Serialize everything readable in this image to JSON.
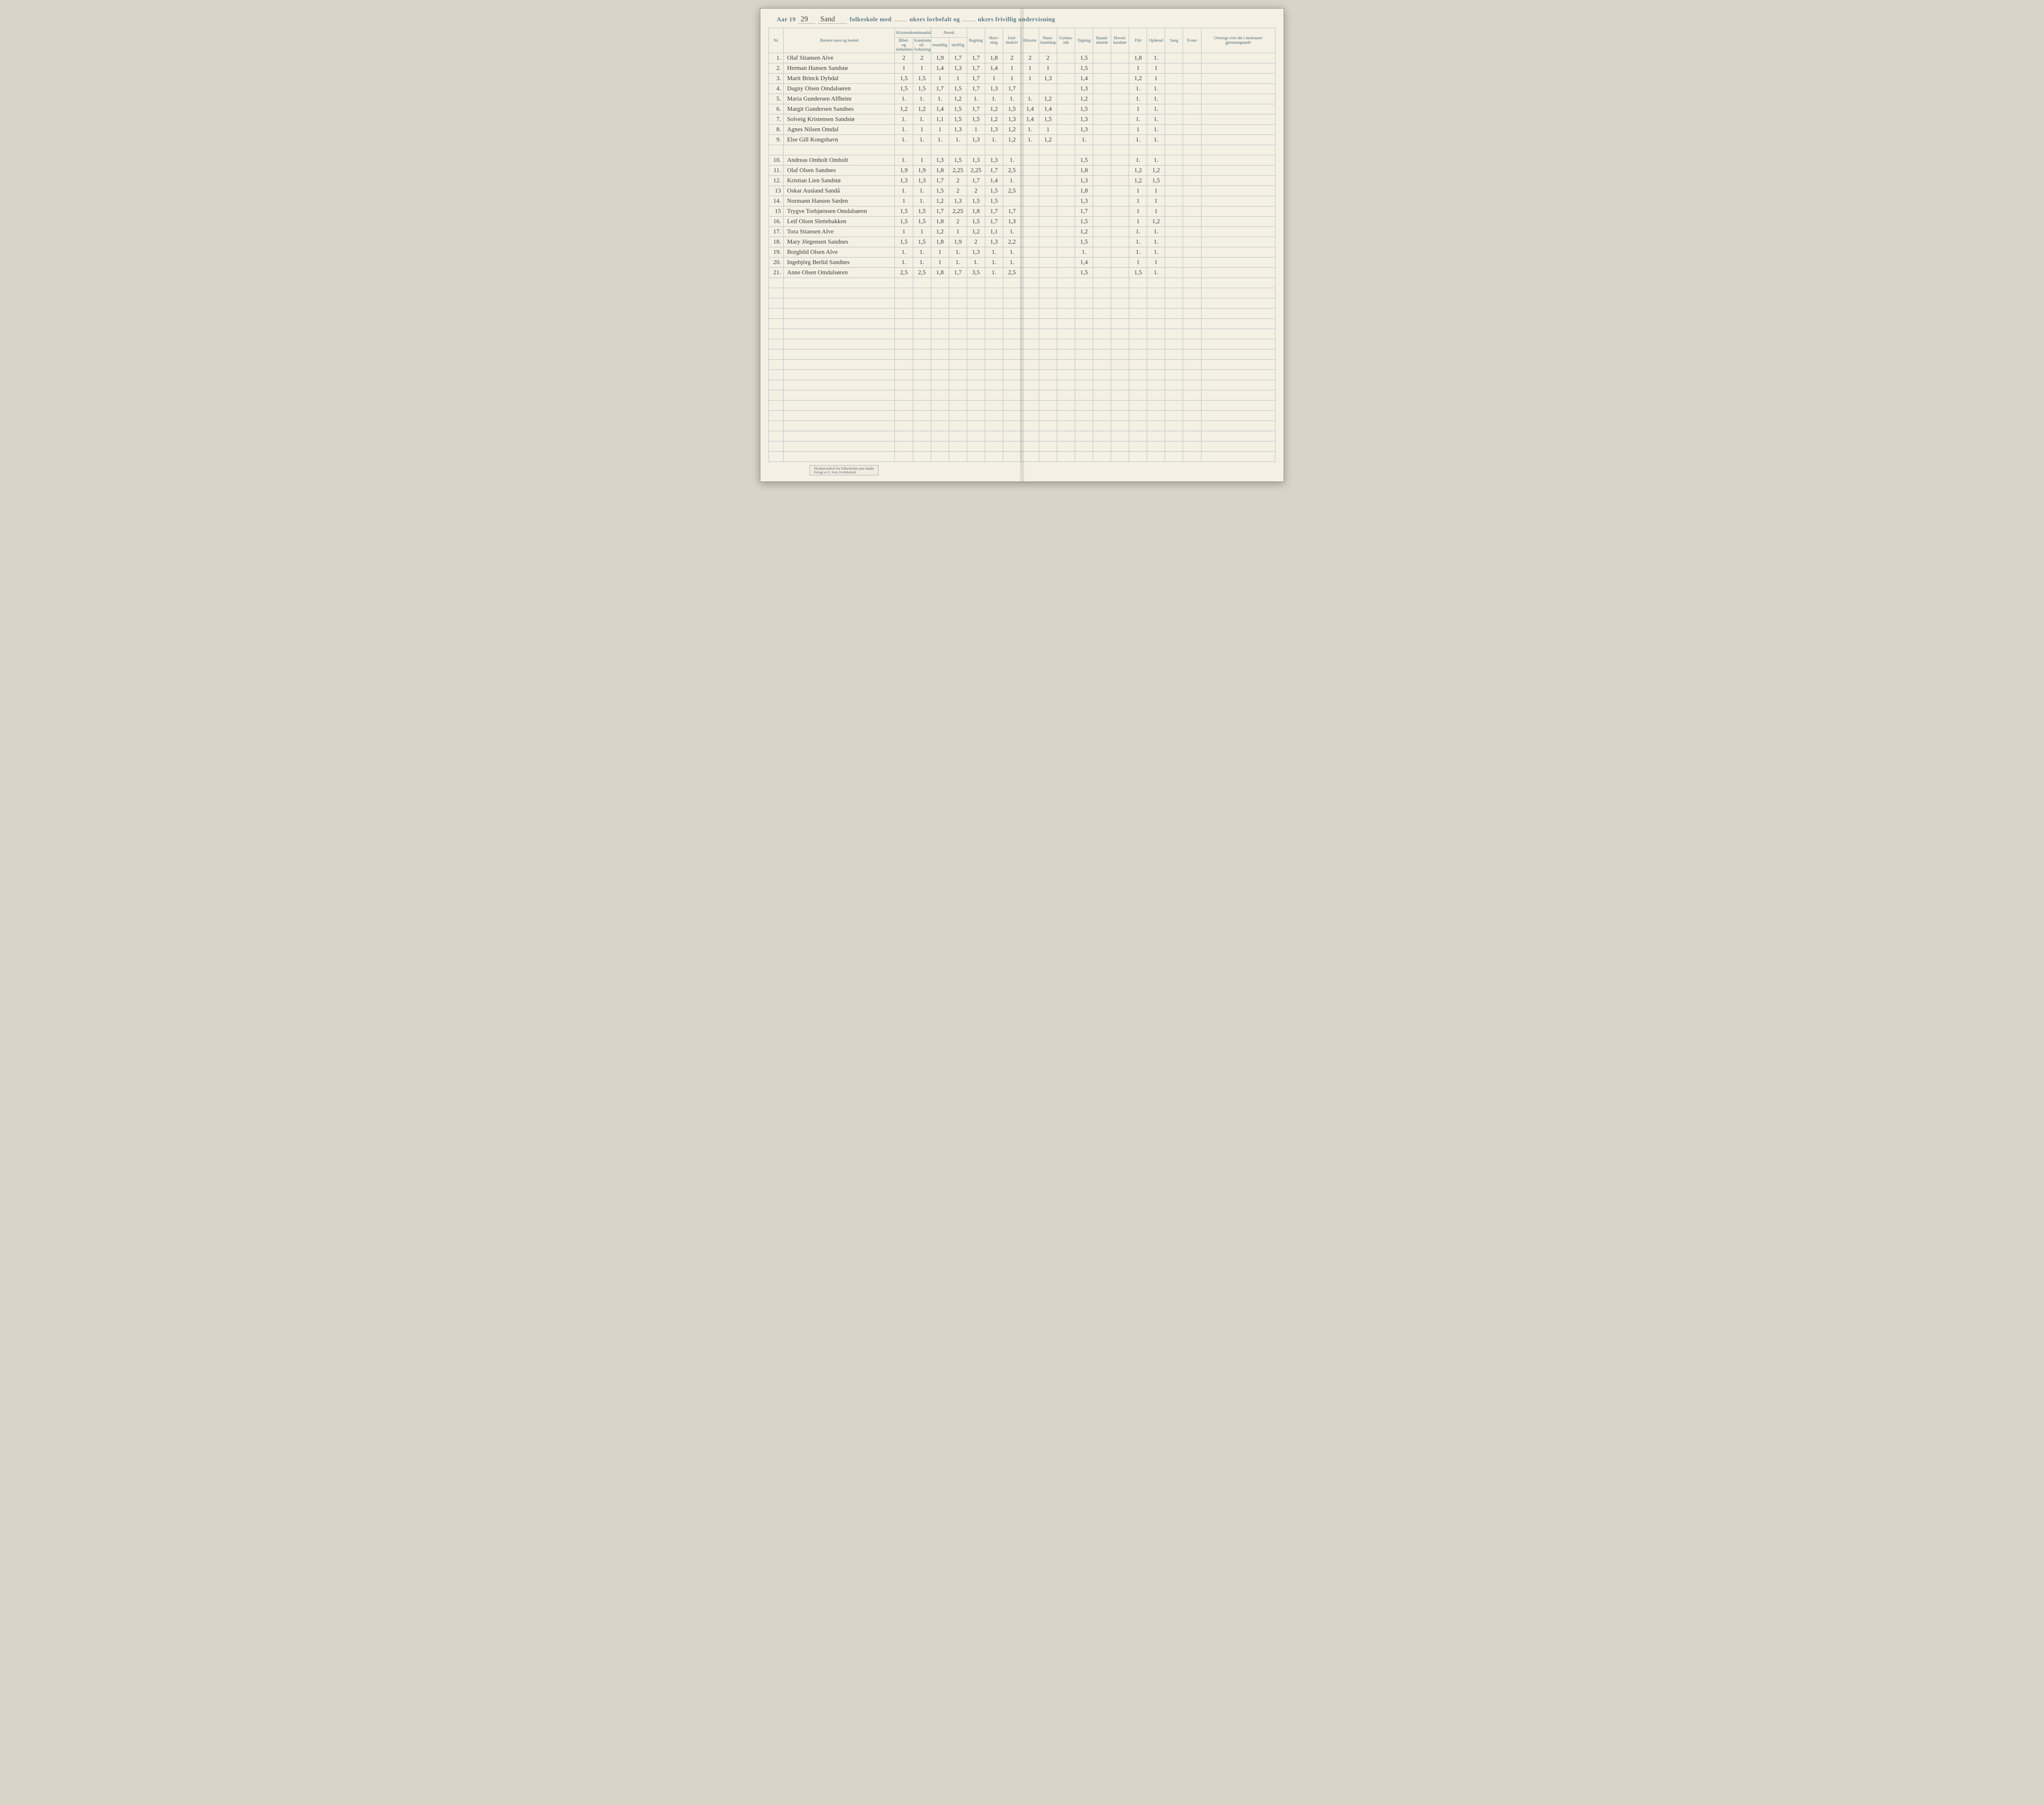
{
  "header": {
    "aar_label": "Aar 19",
    "aar_value": "29",
    "school_name": "Sand",
    "t1": "folkeskole med",
    "t2": "ukers lovbefalt og",
    "t3": "ukers frivillig undervisning"
  },
  "columns": {
    "nr": "Nr.",
    "name": "Barnets navn og bosted",
    "kristendom": "Kristendomskundskap",
    "bibel": "Bibel- og kirkehistorie",
    "katek": "Katekismus ell. forklaring",
    "norsk": "Norsk",
    "mundtlig": "mundtlig",
    "skriftlig": "skriftlig",
    "regning": "Regning",
    "skrivning": "Skriv-ning",
    "jord": "Jord-beskriv",
    "historie": "Historie",
    "natur": "Natur-kundskap",
    "gym": "Gymna-stik",
    "tegning": "Tegning",
    "haand": "Haand-arbeide",
    "hoved": "Hoved-karakter",
    "flid": "Flid",
    "opforsel": "Opførsel",
    "sang": "Sang",
    "evner": "Evner",
    "oversigt": "Oversigt over det i skoleaaret gjennemgaaede"
  },
  "rows": [
    {
      "nr": "1.",
      "name": "Olaf Stiansen   Alve",
      "g": [
        "2",
        "2",
        "1,9",
        "1,7",
        "1,7",
        "1,8",
        "2",
        "2",
        "2",
        "",
        "1,5",
        "",
        "",
        "1,8",
        "1.",
        "",
        "",
        ""
      ]
    },
    {
      "nr": "2.",
      "name": "Herman Hansen   Sandstø",
      "g": [
        "1",
        "1",
        "1,4",
        "1,3",
        "1,7",
        "1,4",
        "1",
        "1",
        "1",
        "",
        "1,5",
        "",
        "",
        "1",
        "1",
        "",
        "",
        ""
      ]
    },
    {
      "nr": "3.",
      "name": "Marit Brinck   Dybdal",
      "g": [
        "1,5",
        "1,5",
        "1",
        "1",
        "1,7",
        "1",
        "1",
        "1",
        "1,3",
        "",
        "1,4",
        "",
        "",
        "1,2",
        "1",
        "",
        "",
        ""
      ]
    },
    {
      "nr": "4.",
      "name": "Dagny Olsen   Omdalsøren",
      "g": [
        "1,5",
        "1,5",
        "1,7",
        "1,5",
        "1,7",
        "1,3",
        "1,7",
        "",
        "",
        "",
        "1,3",
        "",
        "",
        "1.",
        "1.",
        "",
        "",
        ""
      ]
    },
    {
      "nr": "5.",
      "name": "Maria Gundersen   Alfheim",
      "g": [
        "1.",
        "1.",
        "1.",
        "1,2",
        "1.",
        "1.",
        "1.",
        "1.",
        "1,2",
        "",
        "1,2",
        "",
        "",
        "1.",
        "1.",
        "",
        "",
        ""
      ]
    },
    {
      "nr": "6.",
      "name": "Margit Gundersen   Sandnes",
      "g": [
        "1,2",
        "1,2",
        "1,4",
        "1,5",
        "1,7",
        "1,2",
        "1,5",
        "1,4",
        "1,4",
        "",
        "1,5",
        "",
        "",
        "1",
        "1.",
        "",
        "",
        ""
      ]
    },
    {
      "nr": "7.",
      "name": "Solveig Kristensen   Sandstø",
      "g": [
        "1.",
        "1.",
        "1,1",
        "1,5",
        "1,5",
        "1,2",
        "1,3",
        "1,4",
        "1,5",
        "",
        "1,3",
        "",
        "",
        "1.",
        "1.",
        "",
        "",
        ""
      ]
    },
    {
      "nr": "8.",
      "name": "Agnes Nilsen   Omdal",
      "g": [
        "1.",
        "1",
        "1",
        "1,3",
        "1",
        "1,3",
        "1,2",
        "1.",
        "1",
        "",
        "1,3",
        "",
        "",
        "1",
        "1.",
        "",
        "",
        ""
      ]
    },
    {
      "nr": "9.",
      "name": "Else Gill   Kongshavn",
      "g": [
        "1.",
        "1.",
        "1.",
        "1.",
        "1,3",
        "1.",
        "1,2",
        "1.",
        "1,2",
        "",
        "1.",
        "",
        "",
        "1.",
        "1.",
        "",
        "",
        ""
      ]
    },
    {
      "nr": "",
      "name": "",
      "g": [
        "",
        "",
        "",
        "",
        "",
        "",
        "",
        "",
        "",
        "",
        "",
        "",
        "",
        "",
        "",
        "",
        "",
        ""
      ]
    },
    {
      "nr": "10.",
      "name": "Andreas Omholt   Omholt",
      "g": [
        "1.",
        "1",
        "1,3",
        "1,5",
        "1,3",
        "1,3",
        "1.",
        "",
        "",
        "",
        "1,5",
        "",
        "",
        "1.",
        "1.",
        "",
        "",
        ""
      ]
    },
    {
      "nr": "11.",
      "name": "Olaf Olsen   Sandnes",
      "g": [
        "1,9",
        "1,9",
        "1,8",
        "2,25",
        "2,25",
        "1,7",
        "2,5",
        "",
        "",
        "",
        "1,8",
        "",
        "",
        "1,2",
        "1,2",
        "",
        "",
        ""
      ]
    },
    {
      "nr": "12.",
      "name": "Kristian Lien   Sandstø",
      "g": [
        "1,3",
        "1,3",
        "1,7",
        "2",
        "1,7",
        "1,4",
        "1.",
        "",
        "",
        "",
        "1,3",
        "",
        "",
        "1,2",
        "1,5",
        "",
        "",
        ""
      ]
    },
    {
      "nr": "13",
      "name": "Oskar Ausland   Sandå",
      "g": [
        "1.",
        "1.",
        "1,5",
        "2",
        "2",
        "1,5",
        "2,5",
        "",
        "",
        "",
        "1,8",
        "",
        "",
        "1",
        "1",
        "",
        "",
        ""
      ]
    },
    {
      "nr": "14.",
      "name": "Normann Hansen   Sæden",
      "g": [
        "1",
        "1.",
        "1,2",
        "1,3",
        "1,5",
        "1,5",
        "",
        "",
        "",
        "",
        "1,3",
        "",
        "",
        "1",
        "1",
        "",
        "",
        ""
      ]
    },
    {
      "nr": "15",
      "name": "Trygve Torbjørnsen   Omdalsøren",
      "g": [
        "1,5",
        "1,5",
        "1,7",
        "2,25",
        "1,8",
        "1,7",
        "1,7",
        "",
        "",
        "",
        "1,7",
        "",
        "",
        "1",
        "1",
        "",
        "",
        ""
      ]
    },
    {
      "nr": "16.",
      "name": "Leif Olsen   Slettebakken",
      "g": [
        "1,5",
        "1,5",
        "1,8",
        "2",
        "1,5",
        "1,7",
        "1,3",
        "",
        "",
        "",
        "1,5",
        "",
        "",
        "1",
        "1,2",
        "",
        "",
        ""
      ]
    },
    {
      "nr": "17.",
      "name": "Tora Stiansen   Alve",
      "g": [
        "1",
        "1",
        "1,2",
        "1",
        "1,2",
        "1,1",
        "1.",
        "",
        "",
        "",
        "1,2",
        "",
        "",
        "1.",
        "1.",
        "",
        "",
        ""
      ]
    },
    {
      "nr": "18.",
      "name": "Mary Jörgensen   Sandnes",
      "g": [
        "1,5",
        "1,5",
        "1,8",
        "1,9",
        "2",
        "1,3",
        "2,2",
        "",
        "",
        "",
        "1,5",
        "",
        "",
        "1.",
        "1.",
        "",
        "",
        ""
      ]
    },
    {
      "nr": "19.",
      "name": "Borghild Olsen   Alve",
      "g": [
        "1.",
        "1.",
        "1",
        "1.",
        "1,3",
        "1.",
        "1.",
        "",
        "",
        "",
        "1.",
        "",
        "",
        "1.",
        "1.",
        "",
        "",
        ""
      ]
    },
    {
      "nr": "20.",
      "name": "Ingebjörg Berlid   Sandnes",
      "g": [
        "1.",
        "1.",
        "1",
        "1.",
        "1.",
        "1.",
        "1.",
        "",
        "",
        "",
        "1,4",
        "",
        "",
        "1",
        "1",
        "",
        "",
        ""
      ]
    },
    {
      "nr": "21.",
      "name": "Anne Olsen   Omdalsøren",
      "g": [
        "2,5",
        "2,5",
        "1,8",
        "1,7",
        "3,5",
        "1.",
        "2,5",
        "",
        "",
        "",
        "1,5",
        "",
        "",
        "1,5",
        "1.",
        "",
        "",
        ""
      ]
    }
  ],
  "blank_rows_after": 18,
  "footer": {
    "line1": "Skoleprotokol for folkeskolen paa landet",
    "line2": "Forlagt av E. Sem, Fredrikshald"
  }
}
